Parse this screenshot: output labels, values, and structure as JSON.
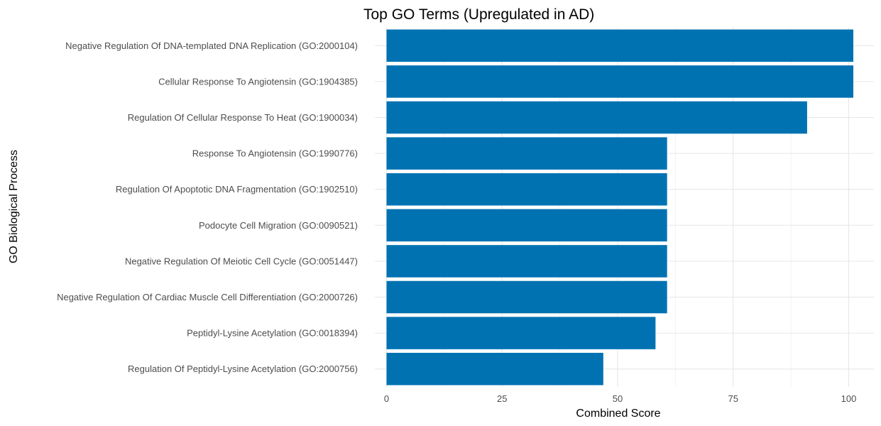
{
  "chart_data": {
    "type": "bar",
    "orientation": "horizontal",
    "title": "Top GO Terms (Upregulated in AD)",
    "xlabel": "Combined Score",
    "ylabel": "GO Biological Process",
    "xlim": [
      0,
      106
    ],
    "x_ticks": [
      0,
      25,
      50,
      75,
      100
    ],
    "grid": true,
    "legend": "none",
    "bar_color": "#0072B2",
    "categories": [
      "Negative Regulation Of DNA-templated DNA Replication (GO:2000104)",
      "Cellular Response To Angiotensin (GO:1904385)",
      "Regulation Of Cellular Response To Heat (GO:1900034)",
      "Response To Angiotensin (GO:1990776)",
      "Regulation Of Apoptotic DNA Fragmentation (GO:1902510)",
      "Podocyte Cell Migration (GO:0090521)",
      "Negative Regulation Of Meiotic Cell Cycle (GO:0051447)",
      "Negative Regulation Of Cardiac Muscle Cell Differentiation (GO:2000726)",
      "Peptidyl-Lysine Acetylation (GO:0018394)",
      "Regulation Of Peptidyl-Lysine Acetylation (GO:2000756)"
    ],
    "values": [
      101.0,
      101.0,
      91.0,
      60.7,
      60.7,
      60.7,
      60.7,
      60.7,
      58.2,
      46.9
    ]
  }
}
